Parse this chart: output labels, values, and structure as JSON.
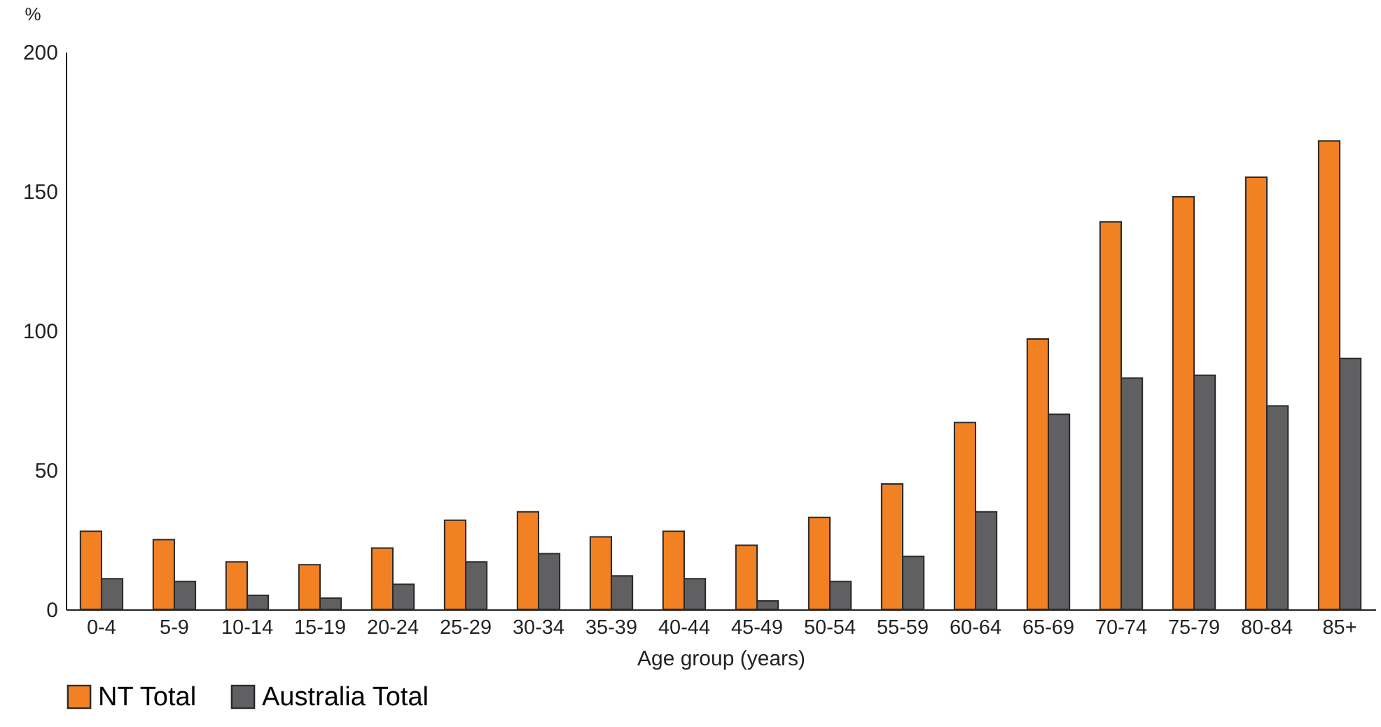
{
  "chart_data": {
    "type": "bar",
    "ylabel": "%",
    "xlabel": "Age group (years)",
    "categories": [
      "0-4",
      "5-9",
      "10-14",
      "15-19",
      "20-24",
      "25-29",
      "30-34",
      "35-39",
      "40-44",
      "45-49",
      "50-54",
      "55-59",
      "60-64",
      "65-69",
      "70-74",
      "75-79",
      "80-84",
      "85+"
    ],
    "series": [
      {
        "name": "NT Total",
        "color": "#f28123",
        "values": [
          28,
          25,
          17,
          16,
          22,
          32,
          35,
          26,
          28,
          23,
          33,
          45,
          67,
          97,
          139,
          148,
          155,
          168
        ]
      },
      {
        "name": "Australia Total",
        "color": "#606062",
        "values": [
          11,
          10,
          5,
          4,
          9,
          17,
          20,
          12,
          11,
          3,
          10,
          19,
          35,
          70,
          83,
          84,
          73,
          90
        ]
      }
    ],
    "ylim": [
      0,
      200
    ],
    "yticks": [
      0,
      50,
      100,
      150,
      200
    ],
    "grid": false,
    "legend": "bottom"
  }
}
